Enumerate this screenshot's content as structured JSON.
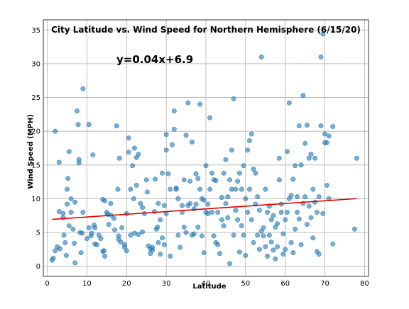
{
  "chart_data": {
    "type": "scatter",
    "title": "City Latitude vs. Wind Speed for Northern Hemisphere (6/15/20)",
    "xlabel": "Latitude",
    "ylabel": "Wind Speed (MPH)",
    "xlim": [
      -1,
      81
    ],
    "ylim": [
      -1.5,
      36.5
    ],
    "xticks": [
      0,
      10,
      20,
      30,
      40,
      50,
      60,
      70,
      80
    ],
    "yticks": [
      0,
      5,
      10,
      15,
      20,
      25,
      30,
      35
    ],
    "grid": true,
    "annotation": "y=0.04x+6.9",
    "regression": {
      "slope": 0.04,
      "intercept": 6.9,
      "x_range": [
        1.2,
        78
      ],
      "color": "#ff0000"
    },
    "point_color": "#1f77b4",
    "points": [
      [
        2,
        20
      ],
      [
        3,
        15.4
      ],
      [
        2,
        2.3
      ],
      [
        1.5,
        1.2
      ],
      [
        1.2,
        0.9
      ],
      [
        2.5,
        2.9
      ],
      [
        3,
        8.1
      ],
      [
        3.2,
        2.6
      ],
      [
        4,
        7.8
      ],
      [
        4,
        7.2
      ],
      [
        4.2,
        4.6
      ],
      [
        4.5,
        3.5
      ],
      [
        4.8,
        1.6
      ],
      [
        5,
        11.4
      ],
      [
        5.2,
        13
      ],
      [
        5.5,
        17
      ],
      [
        5,
        9.2
      ],
      [
        5.5,
        6
      ],
      [
        6,
        10
      ],
      [
        6,
        8
      ],
      [
        6.5,
        5.5
      ],
      [
        6.8,
        3.4
      ],
      [
        7,
        9.5
      ],
      [
        7,
        0.5
      ],
      [
        7.5,
        23
      ],
      [
        7.8,
        21
      ],
      [
        8,
        15.8
      ],
      [
        8,
        15.3
      ],
      [
        8.3,
        5
      ],
      [
        8.5,
        2
      ],
      [
        8.8,
        4.9
      ],
      [
        9,
        8
      ],
      [
        9,
        26.3
      ],
      [
        10,
        4.1
      ],
      [
        10.5,
        21
      ],
      [
        10.5,
        5.7
      ],
      [
        11,
        4.5
      ],
      [
        11.2,
        4.9
      ],
      [
        11.5,
        16.5
      ],
      [
        11.8,
        6.1
      ],
      [
        12,
        5.7
      ],
      [
        12,
        3.3
      ],
      [
        12.5,
        3.2
      ],
      [
        13,
        4.6
      ],
      [
        13.5,
        4.1
      ],
      [
        14,
        9.9
      ],
      [
        14,
        2.2
      ],
      [
        14.3,
        2.3
      ],
      [
        14.5,
        9.7
      ],
      [
        14.5,
        1.5
      ],
      [
        15,
        8
      ],
      [
        15.2,
        7.7
      ],
      [
        15.5,
        6.2
      ],
      [
        16,
        9.3
      ],
      [
        16,
        7.6
      ],
      [
        16.8,
        7.1
      ],
      [
        17,
        5.4
      ],
      [
        17.5,
        20.8
      ],
      [
        17.8,
        11.4
      ],
      [
        18,
        4.5
      ],
      [
        18,
        4
      ],
      [
        18.2,
        16
      ],
      [
        18.5,
        3.6
      ],
      [
        18.8,
        5.7
      ],
      [
        19.5,
        3.2
      ],
      [
        19.5,
        2.8
      ],
      [
        20,
        7.8
      ],
      [
        20,
        2.3
      ],
      [
        20.5,
        16.9
      ],
      [
        20.5,
        19
      ],
      [
        21,
        11.4
      ],
      [
        21,
        4.6
      ],
      [
        21.5,
        14.9
      ],
      [
        21.8,
        10
      ],
      [
        22,
        17.5
      ],
      [
        22,
        4.9
      ],
      [
        22.5,
        16.1
      ],
      [
        22.5,
        12
      ],
      [
        23,
        16.6
      ],
      [
        23,
        4.7
      ],
      [
        23.5,
        9.3
      ],
      [
        24,
        8.7
      ],
      [
        24,
        5.1
      ],
      [
        24.5,
        7.8
      ],
      [
        25,
        12.8
      ],
      [
        25.2,
        11
      ],
      [
        25.5,
        3
      ],
      [
        26,
        2.6
      ],
      [
        26,
        1.9
      ],
      [
        26.5,
        2.4
      ],
      [
        26.5,
        2.8
      ],
      [
        27,
        8.1
      ],
      [
        27.2,
        12.9
      ],
      [
        27.5,
        5.5
      ],
      [
        27.8,
        5.8
      ],
      [
        28,
        9.3
      ],
      [
        28,
        3.5
      ],
      [
        28.5,
        6.9
      ],
      [
        28.5,
        1.8
      ],
      [
        29,
        13.8
      ],
      [
        29,
        4.2
      ],
      [
        29.5,
        3.2
      ],
      [
        29.5,
        9
      ],
      [
        30,
        7.8
      ],
      [
        30,
        17.2
      ],
      [
        30,
        19.5
      ],
      [
        30.5,
        13.7
      ],
      [
        31,
        11.4
      ],
      [
        31,
        1.5
      ],
      [
        31.5,
        18
      ],
      [
        32,
        20.3
      ],
      [
        32,
        23
      ],
      [
        32.5,
        11.4
      ],
      [
        32.5,
        11.6
      ],
      [
        33,
        10
      ],
      [
        33,
        4.6
      ],
      [
        33.5,
        2.8
      ],
      [
        34,
        8
      ],
      [
        34,
        9
      ],
      [
        34.5,
        5.8
      ],
      [
        34.5,
        12.8
      ],
      [
        35,
        19.4
      ],
      [
        35,
        5
      ],
      [
        35.5,
        9
      ],
      [
        35.5,
        24.2
      ],
      [
        36,
        12.6
      ],
      [
        36,
        9.3
      ],
      [
        36.5,
        18.4
      ],
      [
        36.5,
        4.6
      ],
      [
        37,
        8.5
      ],
      [
        37,
        4.8
      ],
      [
        37.5,
        13.7
      ],
      [
        37.5,
        9.2
      ],
      [
        38,
        13
      ],
      [
        38,
        5.8
      ],
      [
        38.5,
        24
      ],
      [
        38.5,
        11.4
      ],
      [
        39,
        10
      ],
      [
        39,
        4.5
      ],
      [
        39.5,
        9.8
      ],
      [
        39.5,
        2
      ],
      [
        40,
        14.9
      ],
      [
        40,
        8
      ],
      [
        40.5,
        9.2
      ],
      [
        40.5,
        7.8
      ],
      [
        41,
        22
      ],
      [
        41,
        11.4
      ],
      [
        41.5,
        13.8
      ],
      [
        41.5,
        8
      ],
      [
        42,
        12.8
      ],
      [
        42,
        4.5
      ],
      [
        42.5,
        12.7
      ],
      [
        42.5,
        3.5
      ],
      [
        43,
        3.2
      ],
      [
        43,
        8
      ],
      [
        43.5,
        1.9
      ],
      [
        44,
        10.2
      ],
      [
        44,
        6.9
      ],
      [
        44.5,
        13.8
      ],
      [
        44.5,
        6
      ],
      [
        45,
        15.8
      ],
      [
        45,
        9.3
      ],
      [
        45.5,
        10.3
      ],
      [
        45.5,
        7.2
      ],
      [
        46,
        12.8
      ],
      [
        46,
        0.4
      ],
      [
        46.5,
        17.2
      ],
      [
        46.5,
        11.4
      ],
      [
        47,
        24.8
      ],
      [
        47,
        4.6
      ],
      [
        47.5,
        11.4
      ],
      [
        47.5,
        8.3
      ],
      [
        48,
        12.6
      ],
      [
        48,
        6.9
      ],
      [
        48.5,
        13.8
      ],
      [
        48.5,
        2.1
      ],
      [
        49,
        11.4
      ],
      [
        49,
        6
      ],
      [
        49.5,
        14.9
      ],
      [
        49.5,
        4.6
      ],
      [
        50,
        10
      ],
      [
        50,
        1.6
      ],
      [
        50.5,
        17.2
      ],
      [
        50.5,
        8
      ],
      [
        51,
        18.6
      ],
      [
        51,
        11.4
      ],
      [
        51.5,
        19.6
      ],
      [
        51.5,
        6.9
      ],
      [
        52,
        14.4
      ],
      [
        52,
        3.5
      ],
      [
        52.5,
        13.8
      ],
      [
        52.5,
        9.2
      ],
      [
        53,
        10.3
      ],
      [
        53,
        4.6
      ],
      [
        53.5,
        8.3
      ],
      [
        53.5,
        2.5
      ],
      [
        54,
        31
      ],
      [
        54,
        5.2
      ],
      [
        54.5,
        5.7
      ],
      [
        54.5,
        4.5
      ],
      [
        55,
        11.4
      ],
      [
        55,
        2.9
      ],
      [
        55.5,
        8
      ],
      [
        55.5,
        1.5
      ],
      [
        56,
        8.9
      ],
      [
        56,
        4.6
      ],
      [
        56.5,
        3.6
      ],
      [
        56.5,
        6.9
      ],
      [
        57,
        7.5
      ],
      [
        57,
        2.4
      ],
      [
        57.5,
        5.8
      ],
      [
        57.5,
        1.1
      ],
      [
        58,
        6.3
      ],
      [
        58,
        2.9
      ],
      [
        58.5,
        16
      ],
      [
        58.5,
        12.8
      ],
      [
        59,
        9.2
      ],
      [
        59,
        8
      ],
      [
        59.5,
        4.8
      ],
      [
        59.5,
        1.8
      ],
      [
        60,
        6.9
      ],
      [
        60,
        2.5
      ],
      [
        60.5,
        17
      ],
      [
        60.5,
        8
      ],
      [
        61,
        24.2
      ],
      [
        61,
        10
      ],
      [
        61.5,
        10.5
      ],
      [
        61.5,
        3.5
      ],
      [
        62,
        12.9
      ],
      [
        62,
        2
      ],
      [
        62.5,
        14.9
      ],
      [
        62.5,
        5.5
      ],
      [
        63,
        10.3
      ],
      [
        63,
        8
      ],
      [
        63.5,
        20.8
      ],
      [
        63.5,
        7
      ],
      [
        64,
        15
      ],
      [
        64,
        3.2
      ],
      [
        64.5,
        25.3
      ],
      [
        64.5,
        9.3
      ],
      [
        65,
        18.2
      ],
      [
        65,
        10.3
      ],
      [
        65.5,
        20.9
      ],
      [
        65.5,
        6.2
      ],
      [
        66,
        16
      ],
      [
        66,
        8.9
      ],
      [
        66.5,
        16.6
      ],
      [
        66.5,
        7.2
      ],
      [
        67,
        11.4
      ],
      [
        67,
        4.2
      ],
      [
        67.5,
        16
      ],
      [
        67.5,
        9.5
      ],
      [
        68,
        8
      ],
      [
        68,
        2.2
      ],
      [
        68.5,
        10.3
      ],
      [
        68.5,
        1.8
      ],
      [
        69,
        31
      ],
      [
        69,
        20.8
      ],
      [
        69.5,
        34.4
      ],
      [
        69.5,
        7.8
      ],
      [
        70,
        19.6
      ],
      [
        70,
        18.3
      ],
      [
        70.5,
        18.3
      ],
      [
        70.5,
        12
      ],
      [
        71,
        19.3
      ],
      [
        71,
        10
      ],
      [
        72,
        20.7
      ],
      [
        72,
        3.3
      ],
      [
        77.5,
        5.5
      ],
      [
        78,
        16
      ]
    ]
  }
}
